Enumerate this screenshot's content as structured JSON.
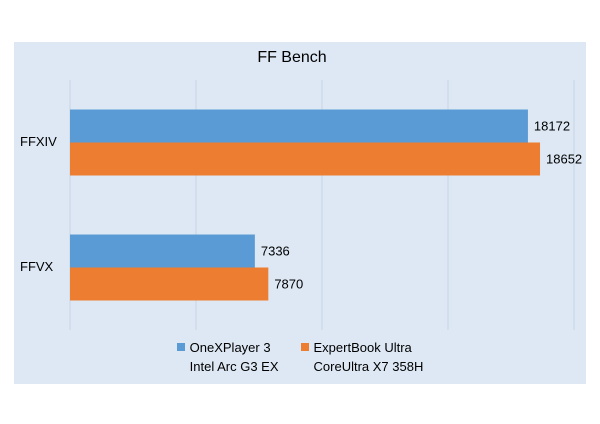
{
  "chart_data": {
    "type": "hbar",
    "title": "FF Bench",
    "categories": [
      "FFXIV",
      "FFVX"
    ],
    "series": [
      {
        "name": "OneXPlayer 3\nIntel Arc G3 EX",
        "color": "#5b9bd5",
        "values": [
          18172,
          7336
        ]
      },
      {
        "name": "ExpertBook Ultra\nCoreUltra X7 358H",
        "color": "#ed7d31",
        "values": [
          18652,
          7870
        ]
      }
    ],
    "xlim": [
      0,
      20000
    ],
    "xticks": [
      0,
      5000,
      10000,
      15000,
      20000
    ],
    "grid": true,
    "legend": "bottom"
  }
}
